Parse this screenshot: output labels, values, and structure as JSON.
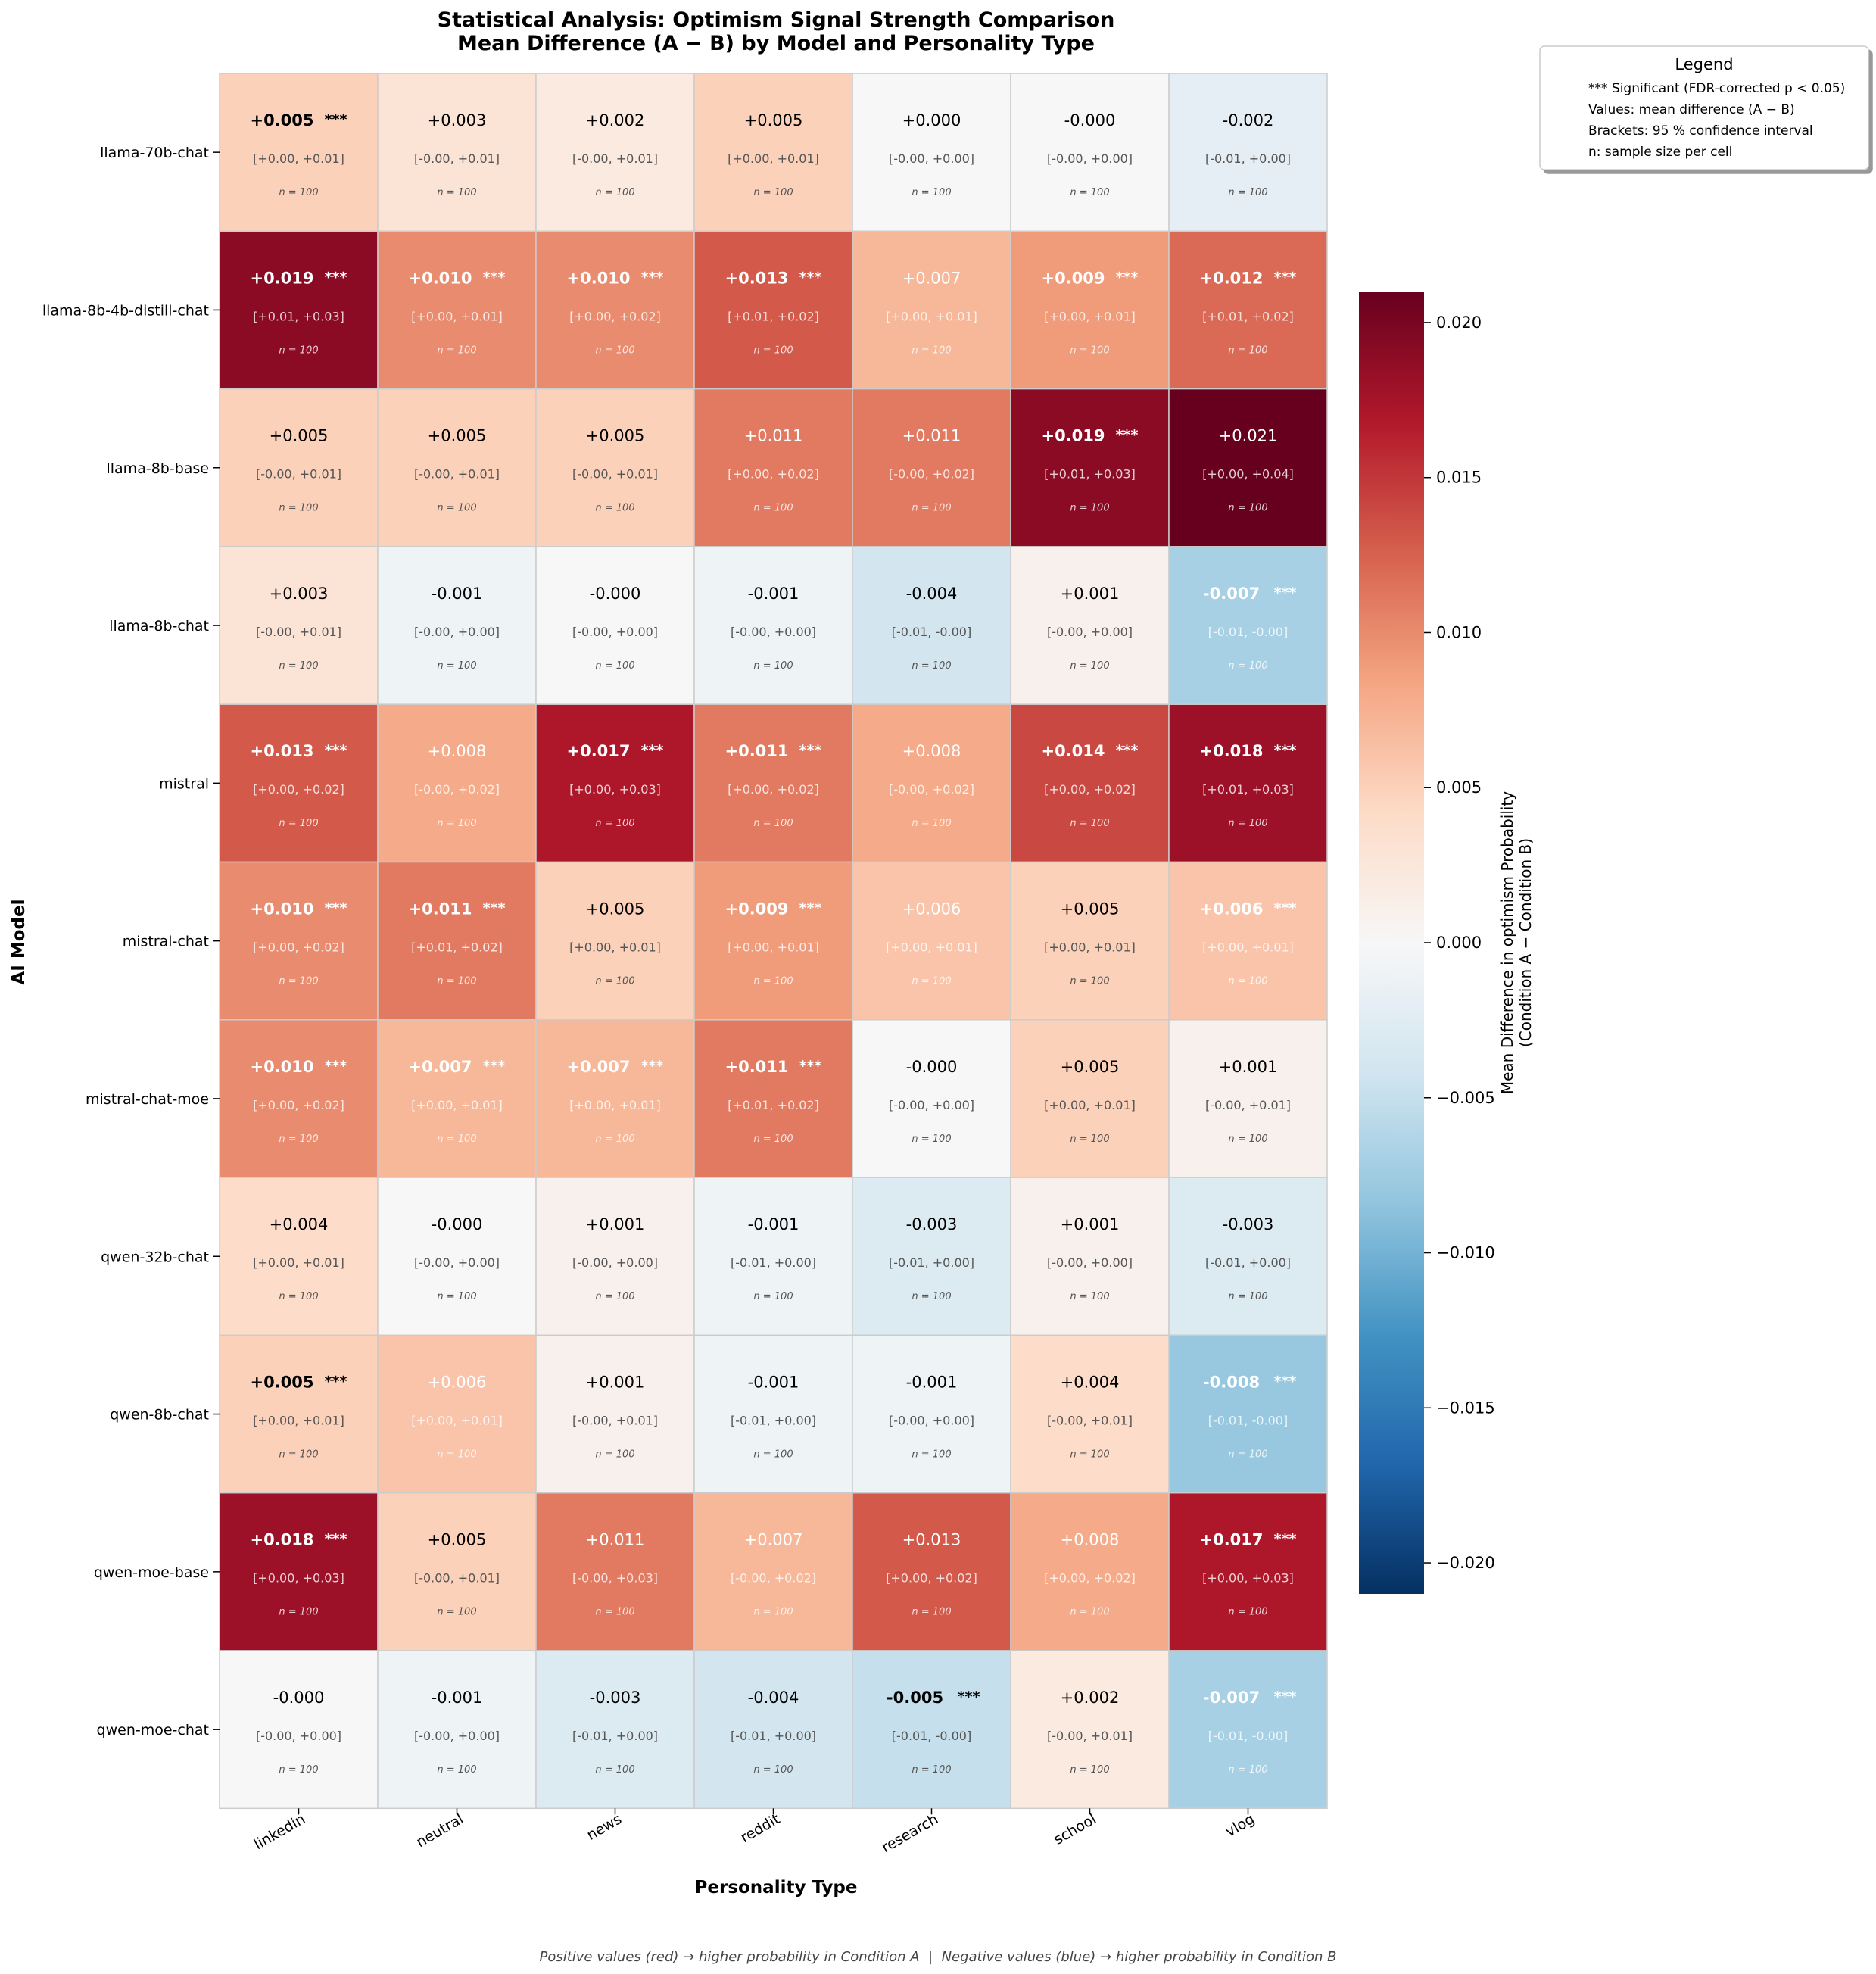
{
  "chart_data": {
    "type": "heatmap",
    "title_line1": "Statistical Analysis: Optimism Signal Strength Comparison",
    "title_line2": "Mean Difference (A − B) by Model and Personality Type",
    "xlabel": "Personality Type",
    "ylabel": "AI Model",
    "x_categories": [
      "linkedin",
      "neutral",
      "news",
      "reddit",
      "research",
      "school",
      "vlog"
    ],
    "y_categories": [
      "llama-70b-chat",
      "llama-8b-4b-distill-chat",
      "llama-8b-base",
      "llama-8b-chat",
      "mistral",
      "mistral-chat",
      "mistral-chat-moe",
      "qwen-32b-chat",
      "qwen-8b-chat",
      "qwen-moe-base",
      "qwen-moe-chat"
    ],
    "values": [
      [
        0.005,
        0.003,
        0.002,
        0.005,
        0.0,
        -0.0,
        -0.002
      ],
      [
        0.019,
        0.01,
        0.01,
        0.013,
        0.007,
        0.009,
        0.012
      ],
      [
        0.005,
        0.005,
        0.005,
        0.011,
        0.011,
        0.019,
        0.021
      ],
      [
        0.003,
        -0.001,
        -0.0,
        -0.001,
        -0.004,
        0.001,
        -0.007
      ],
      [
        0.013,
        0.008,
        0.017,
        0.011,
        0.008,
        0.014,
        0.018
      ],
      [
        0.01,
        0.011,
        0.005,
        0.009,
        0.006,
        0.005,
        0.006
      ],
      [
        0.01,
        0.007,
        0.007,
        0.011,
        -0.0,
        0.005,
        0.001
      ],
      [
        0.004,
        -0.0,
        0.001,
        -0.001,
        -0.003,
        0.001,
        -0.003
      ],
      [
        0.005,
        0.006,
        0.001,
        -0.001,
        -0.001,
        0.004,
        -0.008
      ],
      [
        0.018,
        0.005,
        0.011,
        0.007,
        0.013,
        0.008,
        0.017
      ],
      [
        -0.0,
        -0.001,
        -0.003,
        -0.004,
        -0.005,
        0.002,
        -0.007
      ]
    ],
    "value_labels": [
      [
        "+0.005",
        "+0.003",
        "+0.002",
        "+0.005",
        "+0.000",
        "-0.000",
        "-0.002"
      ],
      [
        "+0.019",
        "+0.010",
        "+0.010",
        "+0.013",
        "+0.007",
        "+0.009",
        "+0.012"
      ],
      [
        "+0.005",
        "+0.005",
        "+0.005",
        "+0.011",
        "+0.011",
        "+0.019",
        "+0.021"
      ],
      [
        "+0.003",
        "-0.001",
        "-0.000",
        "-0.001",
        "-0.004",
        "+0.001",
        "-0.007"
      ],
      [
        "+0.013",
        "+0.008",
        "+0.017",
        "+0.011",
        "+0.008",
        "+0.014",
        "+0.018"
      ],
      [
        "+0.010",
        "+0.011",
        "+0.005",
        "+0.009",
        "+0.006",
        "+0.005",
        "+0.006"
      ],
      [
        "+0.010",
        "+0.007",
        "+0.007",
        "+0.011",
        "-0.000",
        "+0.005",
        "+0.001"
      ],
      [
        "+0.004",
        "-0.000",
        "+0.001",
        "-0.001",
        "-0.003",
        "+0.001",
        "-0.003"
      ],
      [
        "+0.005",
        "+0.006",
        "+0.001",
        "-0.001",
        "-0.001",
        "+0.004",
        "-0.008"
      ],
      [
        "+0.018",
        "+0.005",
        "+0.011",
        "+0.007",
        "+0.013",
        "+0.008",
        "+0.017"
      ],
      [
        "-0.000",
        "-0.001",
        "-0.003",
        "-0.004",
        "-0.005",
        "+0.002",
        "-0.007"
      ]
    ],
    "significant": [
      [
        true,
        false,
        false,
        false,
        false,
        false,
        false
      ],
      [
        true,
        true,
        true,
        true,
        false,
        true,
        true
      ],
      [
        false,
        false,
        false,
        false,
        false,
        true,
        false
      ],
      [
        false,
        false,
        false,
        false,
        false,
        false,
        true
      ],
      [
        true,
        false,
        true,
        true,
        false,
        true,
        true
      ],
      [
        true,
        true,
        false,
        true,
        false,
        false,
        true
      ],
      [
        true,
        true,
        true,
        true,
        false,
        false,
        false
      ],
      [
        false,
        false,
        false,
        false,
        false,
        false,
        false
      ],
      [
        true,
        false,
        false,
        false,
        false,
        false,
        true
      ],
      [
        true,
        false,
        false,
        false,
        false,
        false,
        true
      ],
      [
        false,
        false,
        false,
        false,
        true,
        false,
        true
      ]
    ],
    "significance_marker": "***",
    "confidence_intervals": [
      [
        "[+0.00, +0.01]",
        "[-0.00, +0.01]",
        "[-0.00, +0.01]",
        "[+0.00, +0.01]",
        "[-0.00, +0.00]",
        "[-0.00, +0.00]",
        "[-0.01, +0.00]"
      ],
      [
        "[+0.01, +0.03]",
        "[+0.00, +0.01]",
        "[+0.00, +0.02]",
        "[+0.01, +0.02]",
        "[+0.00, +0.01]",
        "[+0.00, +0.01]",
        "[+0.01, +0.02]"
      ],
      [
        "[-0.00, +0.01]",
        "[-0.00, +0.01]",
        "[-0.00, +0.01]",
        "[+0.00, +0.02]",
        "[-0.00, +0.02]",
        "[+0.01, +0.03]",
        "[+0.00, +0.04]"
      ],
      [
        "[-0.00, +0.01]",
        "[-0.00, +0.00]",
        "[-0.00, +0.00]",
        "[-0.00, +0.00]",
        "[-0.01, -0.00]",
        "[-0.00, +0.00]",
        "[-0.01, -0.00]"
      ],
      [
        "[+0.00, +0.02]",
        "[-0.00, +0.02]",
        "[+0.00, +0.03]",
        "[+0.00, +0.02]",
        "[-0.00, +0.02]",
        "[+0.00, +0.02]",
        "[+0.01, +0.03]"
      ],
      [
        "[+0.00, +0.02]",
        "[+0.01, +0.02]",
        "[+0.00, +0.01]",
        "[+0.00, +0.01]",
        "[+0.00, +0.01]",
        "[+0.00, +0.01]",
        "[+0.00, +0.01]"
      ],
      [
        "[+0.00, +0.02]",
        "[+0.00, +0.01]",
        "[+0.00, +0.01]",
        "[+0.01, +0.02]",
        "[-0.00, +0.00]",
        "[+0.00, +0.01]",
        "[-0.00, +0.01]"
      ],
      [
        "[+0.00, +0.01]",
        "[-0.00, +0.00]",
        "[-0.00, +0.00]",
        "[-0.01, +0.00]",
        "[-0.01, +0.00]",
        "[-0.00, +0.00]",
        "[-0.01, +0.00]"
      ],
      [
        "[+0.00, +0.01]",
        "[+0.00, +0.01]",
        "[-0.00, +0.01]",
        "[-0.01, +0.00]",
        "[-0.00, +0.00]",
        "[-0.00, +0.01]",
        "[-0.01, -0.00]"
      ],
      [
        "[+0.00, +0.03]",
        "[-0.00, +0.01]",
        "[-0.00, +0.03]",
        "[-0.00, +0.02]",
        "[+0.00, +0.02]",
        "[+0.00, +0.02]",
        "[+0.00, +0.03]"
      ],
      [
        "[-0.00, +0.00]",
        "[-0.00, +0.00]",
        "[-0.01, +0.00]",
        "[-0.01, +0.00]",
        "[-0.01, -0.00]",
        "[-0.00, +0.01]",
        "[-0.01, -0.00]"
      ]
    ],
    "sample_size_label": "n = 100",
    "value_range": [
      -0.021,
      0.021
    ],
    "colormap": [
      "#053061",
      "#2166ac",
      "#4393c3",
      "#92c5de",
      "#d1e5f0",
      "#f7f7f7",
      "#fddbc7",
      "#f4a582",
      "#d6604d",
      "#b2182b",
      "#67001f"
    ],
    "colorbar_ticks": [
      "0.020",
      "0.015",
      "0.010",
      "0.005",
      "0.000",
      "−0.005",
      "−0.010",
      "−0.015",
      "−0.020"
    ],
    "colorbar_tick_values": [
      0.02,
      0.015,
      0.01,
      0.005,
      0.0,
      -0.005,
      -0.01,
      -0.015,
      -0.02
    ],
    "colorbar_label_line1": "Mean Difference in optimism Probability",
    "colorbar_label_line2": "(Condition A − Condition B)",
    "legend": {
      "title": "Legend",
      "placement": "top-right",
      "entries": [
        "*** Significant (FDR-corrected p < 0.05)",
        "Values: mean difference (A − B)",
        "Brackets: 95 % confidence interval",
        "n: sample size per cell"
      ]
    },
    "footnote": "Positive values (red) → higher probability in Condition A  |  Negative values (blue) → higher probability in Condition B"
  }
}
